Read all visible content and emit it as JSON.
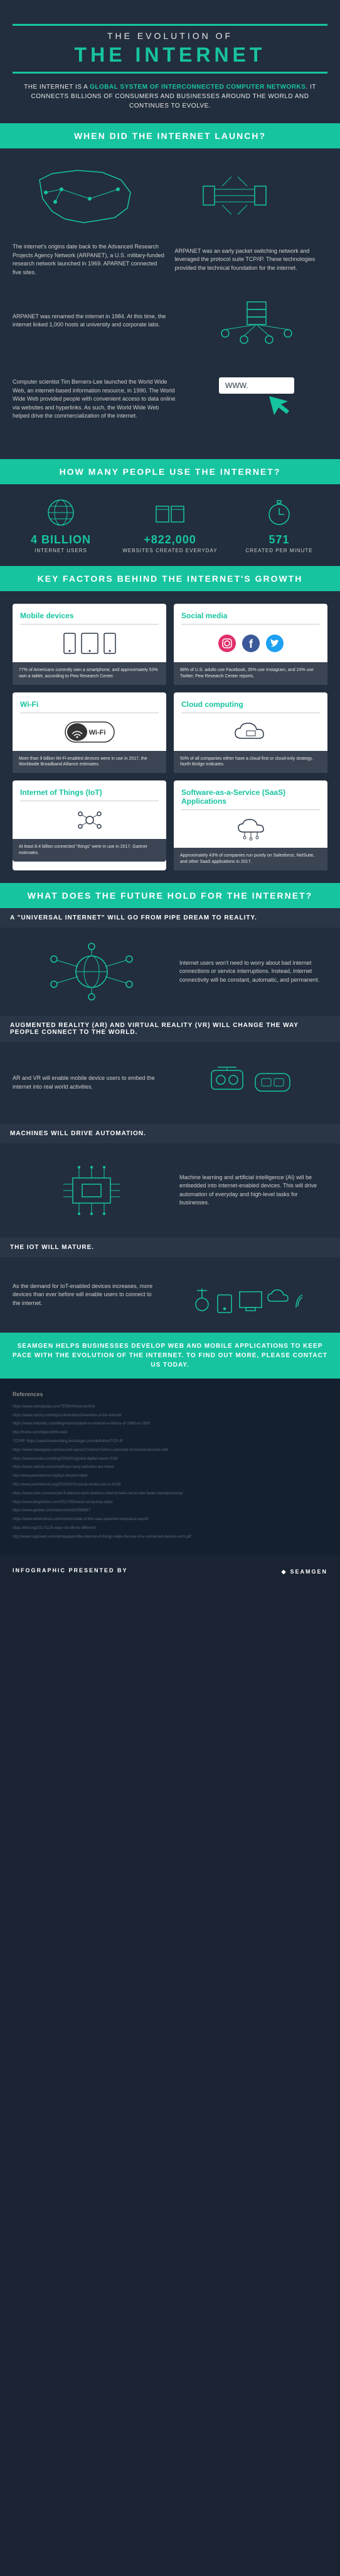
{
  "colors": {
    "accent": "#17c4a0",
    "bg_dark": "#222e3d",
    "bg_darker": "#15202e",
    "card_footer": "#3a4452",
    "text_light": "#d0d0d0",
    "text_muted": "#5a6878"
  },
  "header": {
    "pretitle": "THE EVOLUTION OF",
    "title": "THE INTERNET",
    "subtitle_1": "THE INTERNET IS A ",
    "subtitle_highlight": "GLOBAL SYSTEM OF INTERCONNECTED COMPUTER NETWORKS",
    "subtitle_2": ". IT CONNECTS BILLIONS OF CONSUMERS AND BUSINESSES AROUND THE WORLD AND CONTINUES TO EVOLVE."
  },
  "sections": {
    "launch": {
      "title": "WHEN DID THE INTERNET LAUNCH?",
      "items": [
        {
          "text": "The internet's origins date back to the Advanced Research Projects Agency Network (ARPANET), a U.S. military-funded research network launched in 1969. APARNET connected five sites."
        },
        {
          "text": "ARPANET was an early packet switching network and leveraged the protocol suite TCP/IP. These technologies provided the technical foundation for the internet."
        },
        {
          "text": "ARPANET was renamed the internet in 1984. At this time, the internet linked 1,000 hosts at university and corporate labs."
        },
        {
          "text": "Computer scientist Tim Berners-Lee launched the World Wide Web, an internet-based information resource, in 1990. The World Wide Web provided people with convenient access to data online via websites and hyperlinks. As such, the World Wide Web helped drive the commercialization of the internet."
        }
      ]
    },
    "usage": {
      "title": "HOW MANY PEOPLE USE THE INTERNET?",
      "stats": [
        {
          "value": "4 BILLION",
          "label": "INTERNET USERS"
        },
        {
          "value": "+822,000",
          "label": "WEBSITES CREATED EVERYDAY"
        },
        {
          "value": "571",
          "label": "CREATED PER MINUTE"
        }
      ]
    },
    "factors": {
      "title": "KEY FACTORS BEHIND THE INTERNET'S GROWTH",
      "cards": [
        {
          "title": "Mobile devices",
          "text": "77% of Americans currently own a smartphone, and approximately 53% own a tablet, according to Pew Research Center."
        },
        {
          "title": "Social media",
          "text": "68% of U.S. adults use Facebook, 35% use Instagram, and 24% use Twitter, Pew Research Center reports."
        },
        {
          "title": "Wi-Fi",
          "text": "More than 9 billion Wi-Fi-enabled devices were in use in 2017, the Worldwide Broadband Alliance estimates."
        },
        {
          "title": "Cloud computing",
          "text": "50% of all companies either have a cloud-first or cloud-only strategy, North Bridge indicates."
        },
        {
          "title": "Internet of Things (IoT)",
          "text": "At least 8.4 billion connected \"things\" were in use in 2017, Gartner estimates."
        },
        {
          "title": "Software-as-a-Service (SaaS) Applications",
          "text": "Approximately 43% of companies run purely on Salesforce, NetSuite, and other SaaS applications in 2017."
        }
      ]
    },
    "future": {
      "title": "WHAT DOES THE FUTURE HOLD FOR THE INTERNET?",
      "items": [
        {
          "subtitle": "A \"UNIVERSAL INTERNET\" WILL GO FROM PIPE DREAM TO REALITY.",
          "text": "Internet users won't need to worry about bad internet connections or service interruptions. Instead, internet connectivity will be constant, automatic, and permanent."
        },
        {
          "subtitle": "AUGMENTED REALITY (AR) AND VIRTUAL REALITY (VR) WILL CHANGE THE WAY PEOPLE CONNECT TO THE WORLD.",
          "text": "AR and VR will enable mobile device users to embed the internet into real world activities."
        },
        {
          "subtitle": "MACHINES WILL DRIVE AUTOMATION.",
          "text": "Machine learning and artificial intelligence (AI) will be embedded into internet-enabled devices. This will drive automation of everyday and high-level tasks for businesses."
        },
        {
          "subtitle": "THE IOT WILL MATURE.",
          "text": "As the demand for IoT-enabled devices increases, more devices than ever before will enable users to connect to the internet."
        }
      ]
    }
  },
  "cta": "SEAMGEN HELPS BUSINESSES DEVELOP WEB AND MOBILE APPLICATIONS TO KEEP PACE WITH THE EVOLUTION OF THE INTERNET. TO FIND OUT MORE, PLEASE CONTACT US TODAY.",
  "refs": {
    "title": "References",
    "items": [
      "https://www.webopedia.com/TERM/I/Internet.html",
      "https://www.history.com/topics/inventions/invention-of-the-internet",
      "https://www.mitchellc.com/blog/main/arpanet-vs-internet-a-history-of-1969-vs-1993",
      "http://home.cern/topics/birth-web",
      "TCP/IP: https://searchnetworking.techtarget.com/definition/TCP-IP",
      "https://www.howtogeek.com/second-launch72ndnet-Forms-Launched-of-internet-become-Hot",
      "https://wearesocial.com/blog/2018/01/global-digital-report-2018",
      "https://www.statista.com/chart/how-many-websites-are-there/",
      "http://www.pewinternet.org/fact-sheet/mobile/",
      "http://www.pewinternet.org/2018/03/01/social-media-use-in-2018/",
      "https://www.cnet.com/news/wi-fi-alliance-want-wireless-internet-here-name-new-faster-standards/amp/",
      "https://www.blogchotec.com/2017/05/cloud-computing-stats/",
      "https://www.gartner.com/newsroom/id/3598917",
      "https://www.bettercloud.com/monitor/state-of-the-saas-powered-workplace-report/",
      "https://hbr.org/2017/11/5-ways-iot-will-be-different/",
      "http://www.cognixant.com/whitepapers/the-internet-of-things-helps-the-rise-of-a-connected-devices-vol3.pdf"
    ]
  },
  "footer": {
    "label": "INFOGRAPHIC PRESENTED BY",
    "brand": "SEAMGEN"
  }
}
